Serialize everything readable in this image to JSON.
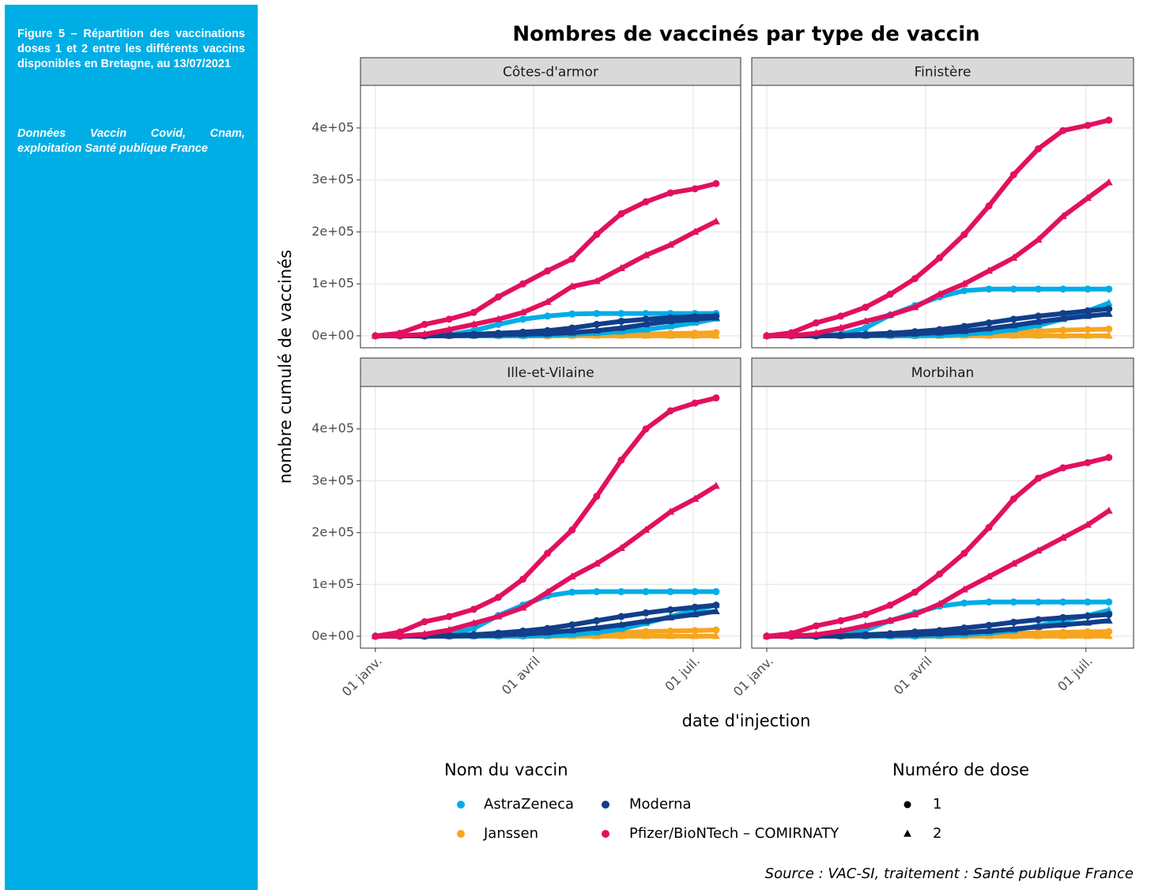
{
  "sidebar": {
    "caption": "Figure 5 – Répartition des vaccinations doses 1 et 2 entre les différents vaccins disponibles en Bretagne, au 13/07/2021",
    "source": "Données Vaccin Covid, Cnam, exploitation Santé publique France"
  },
  "chart_data": {
    "type": "line",
    "title": "Nombres de vaccinés par type de vaccin",
    "xlabel": "date d'injection",
    "ylabel": "nombre cumulé de vaccinés",
    "source": "Source : VAC-SI, traitement : Santé publique France",
    "grid": true,
    "x": [
      0,
      14,
      28,
      42,
      56,
      70,
      84,
      98,
      112,
      126,
      140,
      154,
      168,
      182,
      194
    ],
    "xlim": [
      -8.5,
      208
    ],
    "xticks": [
      {
        "value": 0,
        "label": "01 janv."
      },
      {
        "value": 90,
        "label": "01 avril"
      },
      {
        "value": 181,
        "label": "01 juil."
      }
    ],
    "ylim": [
      -23000,
      482000
    ],
    "yticks": [
      {
        "value": 0,
        "label": "0e+00"
      },
      {
        "value": 100000,
        "label": "1e+05"
      },
      {
        "value": 200000,
        "label": "2e+05"
      },
      {
        "value": 300000,
        "label": "3e+05"
      },
      {
        "value": 400000,
        "label": "4e+05"
      }
    ],
    "color_legend": {
      "title": "Nom du vaccin",
      "items": [
        {
          "name": "AstraZeneca",
          "color": "#00ade6"
        },
        {
          "name": "Moderna",
          "color": "#123e8a"
        },
        {
          "name": "Janssen",
          "color": "#f7a51f"
        },
        {
          "name": "Pfizer/BioNTech – COMIRNATY",
          "color": "#e2105f"
        }
      ]
    },
    "shape_legend": {
      "title": "Numéro de dose",
      "items": [
        {
          "name": "1",
          "shape": "circle"
        },
        {
          "name": "2",
          "shape": "triangle"
        }
      ]
    },
    "panels": [
      {
        "title": "Côtes-d'armor",
        "series": [
          {
            "vaccine": "Janssen",
            "dose": "2",
            "values": [
              0,
              0,
              0,
              0,
              0,
              0,
              0,
              0,
              0,
              0,
              0,
              0,
              0,
              0,
              0
            ]
          },
          {
            "vaccine": "Janssen",
            "dose": "1",
            "values": [
              0,
              0,
              0,
              0,
              0,
              0,
              0,
              0,
              500,
              1500,
              2500,
              3500,
              4500,
              5000,
              6000
            ]
          },
          {
            "vaccine": "AstraZeneca",
            "dose": "2",
            "values": [
              0,
              0,
              0,
              0,
              0,
              0,
              0,
              1000,
              3000,
              5000,
              8000,
              12000,
              18000,
              25000,
              33000
            ]
          },
          {
            "vaccine": "AstraZeneca",
            "dose": "1",
            "values": [
              0,
              0,
              0,
              2000,
              10000,
              22000,
              32000,
              38000,
              42000,
              43000,
              43000,
              43000,
              43000,
              43000,
              43000
            ]
          },
          {
            "vaccine": "Moderna",
            "dose": "2",
            "values": [
              0,
              0,
              0,
              0,
              1000,
              2000,
              3000,
              4000,
              6000,
              10000,
              15000,
              22000,
              28000,
              32000,
              35000
            ]
          },
          {
            "vaccine": "Moderna",
            "dose": "1",
            "values": [
              0,
              0,
              0,
              1000,
              3000,
              5000,
              7000,
              10000,
              15000,
              22000,
              28000,
              32000,
              35000,
              37000,
              38000
            ]
          },
          {
            "vaccine": "Pfizer/BioNTech – COMIRNATY",
            "dose": "2",
            "values": [
              0,
              0,
              3000,
              12000,
              22000,
              32000,
              45000,
              65000,
              95000,
              105000,
              130000,
              155000,
              175000,
              200000,
              220000
            ]
          },
          {
            "vaccine": "Pfizer/BioNTech – COMIRNATY",
            "dose": "1",
            "values": [
              0,
              5000,
              22000,
              32000,
              45000,
              75000,
              100000,
              125000,
              148000,
              195000,
              235000,
              258000,
              275000,
              283000,
              293000
            ]
          }
        ]
      },
      {
        "title": "Finistère",
        "series": [
          {
            "vaccine": "Janssen",
            "dose": "2",
            "values": [
              0,
              0,
              0,
              0,
              0,
              0,
              0,
              0,
              0,
              0,
              0,
              0,
              0,
              0,
              0
            ]
          },
          {
            "vaccine": "Janssen",
            "dose": "1",
            "values": [
              0,
              0,
              0,
              0,
              0,
              0,
              0,
              1000,
              3000,
              5000,
              7000,
              9000,
              11000,
              12000,
              13000
            ]
          },
          {
            "vaccine": "AstraZeneca",
            "dose": "2",
            "values": [
              0,
              0,
              0,
              0,
              0,
              0,
              0,
              1000,
              3000,
              6000,
              12000,
              20000,
              32000,
              48000,
              63000
            ]
          },
          {
            "vaccine": "AstraZeneca",
            "dose": "1",
            "values": [
              0,
              0,
              0,
              3000,
              15000,
              40000,
              58000,
              75000,
              87000,
              90000,
              90000,
              90000,
              90000,
              90000,
              90000
            ]
          },
          {
            "vaccine": "Moderna",
            "dose": "2",
            "values": [
              0,
              0,
              0,
              0,
              1000,
              2000,
              4000,
              6000,
              9000,
              14000,
              20000,
              27000,
              33000,
              38000,
              42000
            ]
          },
          {
            "vaccine": "Moderna",
            "dose": "1",
            "values": [
              0,
              0,
              0,
              1000,
              3000,
              5000,
              8000,
              12000,
              18000,
              25000,
              32000,
              38000,
              43000,
              48000,
              52000
            ]
          },
          {
            "vaccine": "Pfizer/BioNTech – COMIRNATY",
            "dose": "2",
            "values": [
              0,
              0,
              5000,
              15000,
              28000,
              40000,
              55000,
              80000,
              100000,
              125000,
              150000,
              185000,
              230000,
              265000,
              295000
            ]
          },
          {
            "vaccine": "Pfizer/BioNTech – COMIRNATY",
            "dose": "1",
            "values": [
              0,
              6000,
              25000,
              38000,
              55000,
              80000,
              110000,
              150000,
              195000,
              250000,
              310000,
              360000,
              395000,
              405000,
              415000
            ]
          }
        ]
      },
      {
        "title": "Ille-et-Vilaine",
        "series": [
          {
            "vaccine": "Janssen",
            "dose": "2",
            "values": [
              0,
              0,
              0,
              0,
              0,
              0,
              0,
              0,
              0,
              0,
              0,
              0,
              0,
              0,
              0
            ]
          },
          {
            "vaccine": "Janssen",
            "dose": "1",
            "values": [
              0,
              0,
              0,
              0,
              0,
              0,
              0,
              1000,
              3000,
              5000,
              7000,
              9000,
              10000,
              11000,
              12000
            ]
          },
          {
            "vaccine": "AstraZeneca",
            "dose": "2",
            "values": [
              0,
              0,
              0,
              0,
              0,
              0,
              0,
              1000,
              3000,
              7000,
              14000,
              25000,
              38000,
              50000,
              60000
            ]
          },
          {
            "vaccine": "AstraZeneca",
            "dose": "1",
            "values": [
              0,
              0,
              0,
              3000,
              15000,
              40000,
              60000,
              78000,
              85000,
              86000,
              86000,
              86000,
              86000,
              86000,
              86000
            ]
          },
          {
            "vaccine": "Moderna",
            "dose": "2",
            "values": [
              0,
              0,
              0,
              0,
              1000,
              2000,
              4000,
              7000,
              11000,
              16000,
              22000,
              29000,
              36000,
              42000,
              48000
            ]
          },
          {
            "vaccine": "Moderna",
            "dose": "1",
            "values": [
              0,
              0,
              0,
              1000,
              3000,
              6000,
              10000,
              15000,
              22000,
              30000,
              38000,
              45000,
              51000,
              56000,
              60000
            ]
          },
          {
            "vaccine": "Pfizer/BioNTech – COMIRNATY",
            "dose": "2",
            "values": [
              0,
              0,
              4000,
              12000,
              25000,
              38000,
              55000,
              85000,
              115000,
              140000,
              170000,
              205000,
              240000,
              265000,
              290000
            ]
          },
          {
            "vaccine": "Pfizer/BioNTech – COMIRNATY",
            "dose": "1",
            "values": [
              0,
              8000,
              28000,
              38000,
              52000,
              75000,
              110000,
              160000,
              205000,
              270000,
              340000,
              400000,
              435000,
              450000,
              460000
            ]
          }
        ]
      },
      {
        "title": "Morbihan",
        "series": [
          {
            "vaccine": "Janssen",
            "dose": "2",
            "values": [
              0,
              0,
              0,
              0,
              0,
              0,
              0,
              0,
              0,
              0,
              0,
              0,
              0,
              0,
              0
            ]
          },
          {
            "vaccine": "Janssen",
            "dose": "1",
            "values": [
              0,
              0,
              0,
              0,
              0,
              0,
              0,
              1000,
              2000,
              3500,
              5000,
              6500,
              7500,
              8500,
              9000
            ]
          },
          {
            "vaccine": "AstraZeneca",
            "dose": "2",
            "values": [
              0,
              0,
              0,
              0,
              0,
              0,
              0,
              1000,
              3000,
              6000,
              11000,
              20000,
              30000,
              40000,
              50000
            ]
          },
          {
            "vaccine": "AstraZeneca",
            "dose": "1",
            "values": [
              0,
              0,
              0,
              2000,
              12000,
              30000,
              45000,
              58000,
              64000,
              66000,
              66000,
              66000,
              66000,
              66000,
              66000
            ]
          },
          {
            "vaccine": "Moderna",
            "dose": "2",
            "values": [
              0,
              0,
              0,
              0,
              1000,
              2000,
              3000,
              5000,
              7000,
              10000,
              14000,
              18000,
              22000,
              26000,
              30000
            ]
          },
          {
            "vaccine": "Moderna",
            "dose": "1",
            "values": [
              0,
              0,
              0,
              1000,
              3000,
              5000,
              8000,
              11000,
              16000,
              21000,
              27000,
              32000,
              36000,
              39000,
              42000
            ]
          },
          {
            "vaccine": "Pfizer/BioNTech – COMIRNATY",
            "dose": "2",
            "values": [
              0,
              0,
              3000,
              10000,
              20000,
              30000,
              42000,
              62000,
              90000,
              115000,
              140000,
              165000,
              190000,
              215000,
              242000
            ]
          },
          {
            "vaccine": "Pfizer/BioNTech – COMIRNATY",
            "dose": "1",
            "values": [
              0,
              5000,
              20000,
              30000,
              42000,
              60000,
              85000,
              120000,
              160000,
              210000,
              265000,
              305000,
              325000,
              335000,
              345000
            ]
          }
        ]
      }
    ]
  }
}
